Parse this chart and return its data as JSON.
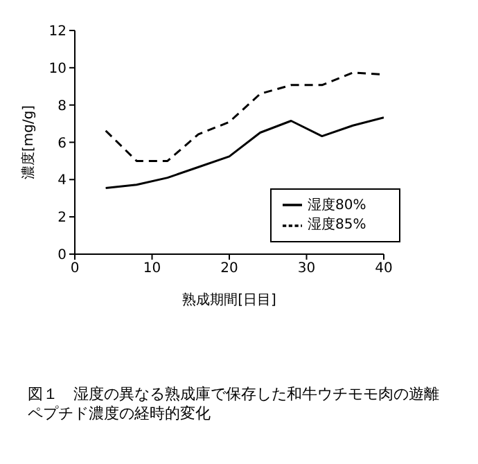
{
  "chart_data": {
    "type": "line",
    "xlabel": "熟成期間[日目]",
    "ylabel": "濃度[mg/g]",
    "x": [
      4,
      8,
      12,
      16,
      20,
      24,
      28,
      32,
      36,
      40
    ],
    "series": [
      {
        "name": "湿度80%",
        "color": "#000000",
        "line_style": "solid",
        "values": [
          3.55,
          3.72,
          4.1,
          4.67,
          5.24,
          6.52,
          7.15,
          6.33,
          6.9,
          7.33
        ]
      },
      {
        "name": "湿度85%",
        "color": "#000000",
        "line_style": "dashed",
        "values": [
          6.62,
          5.0,
          5.0,
          6.43,
          7.09,
          8.6,
          9.07,
          9.07,
          9.74,
          9.64
        ]
      }
    ],
    "xlim": [
      0,
      40
    ],
    "xticks": [
      0,
      10,
      20,
      30,
      40
    ],
    "ylim": [
      0,
      12
    ],
    "yticks": [
      0,
      2,
      4,
      6,
      8,
      10,
      12
    ],
    "grid": false,
    "legend": "bottom right",
    "marker": "none",
    "annotations": [
      "図１　湿度の異なる熟成庫で保存した和牛ウチモモ肉の遊離ペプチド濃度の経時的変化"
    ]
  }
}
